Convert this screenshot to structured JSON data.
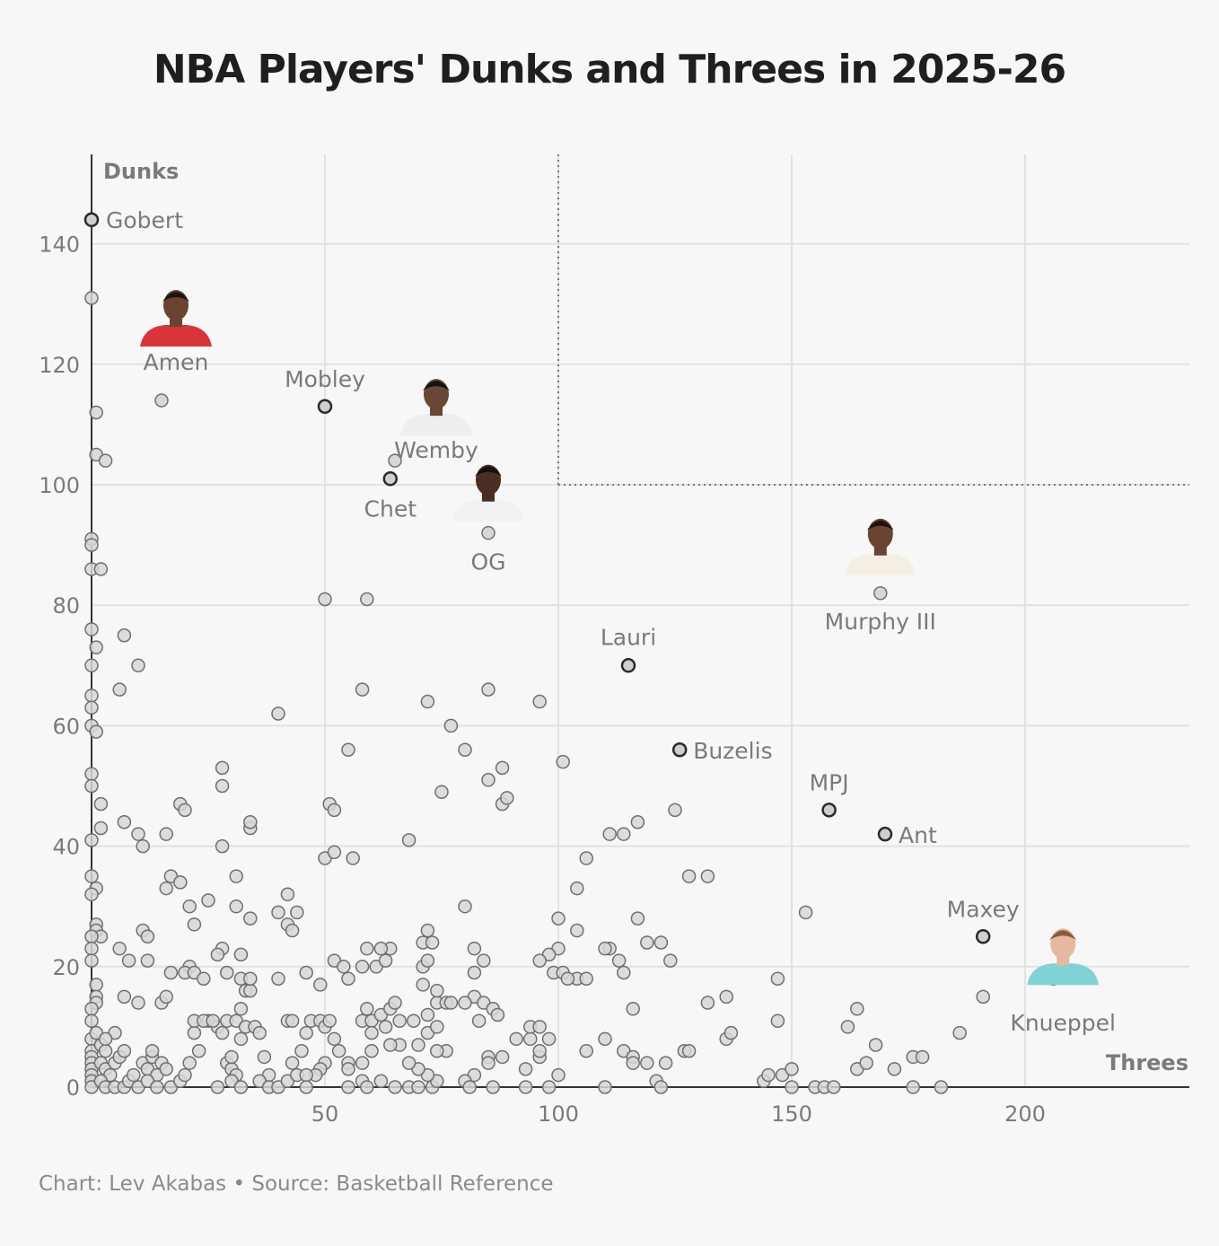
{
  "chart_data": {
    "type": "scatter",
    "title": "NBA Players' Dunks and Threes in 2025-26",
    "xlabel": "Threes",
    "ylabel": "Dunks",
    "xlim": [
      0,
      235
    ],
    "ylim": [
      0,
      155
    ],
    "x_ticks": [
      50,
      100,
      150,
      200
    ],
    "y_ticks": [
      0,
      20,
      40,
      60,
      80,
      100,
      120,
      140
    ],
    "grid": true,
    "reference_lines": [
      {
        "type": "vertical",
        "x": 100,
        "y_from": 100,
        "y_to": 155
      },
      {
        "type": "horizontal",
        "y": 100,
        "x_from": 100,
        "x_to": 235
      }
    ],
    "labeled_points": [
      {
        "name": "Gobert",
        "x": 0,
        "y": 144
      },
      {
        "name": "Amen",
        "x": 15,
        "y": 114,
        "headshot": true
      },
      {
        "name": "Mobley",
        "x": 50,
        "y": 113
      },
      {
        "name": "Wemby",
        "x": 65,
        "y": 104,
        "headshot": true
      },
      {
        "name": "Chet",
        "x": 64,
        "y": 101
      },
      {
        "name": "OG",
        "x": 85,
        "y": 92,
        "headshot": true
      },
      {
        "name": "Murphy III",
        "x": 169,
        "y": 82,
        "headshot": true
      },
      {
        "name": "Lauri",
        "x": 115,
        "y": 70
      },
      {
        "name": "Buzelis",
        "x": 126,
        "y": 56
      },
      {
        "name": "MPJ",
        "x": 158,
        "y": 46
      },
      {
        "name": "Ant",
        "x": 170,
        "y": 42
      },
      {
        "name": "Maxey",
        "x": 191,
        "y": 25
      },
      {
        "name": "Knueppel",
        "x": 206,
        "y": 18,
        "headshot": true
      }
    ],
    "points": [
      [
        0,
        131
      ],
      [
        1,
        112
      ],
      [
        1,
        105
      ],
      [
        3,
        104
      ],
      [
        0,
        91
      ],
      [
        0,
        90
      ],
      [
        0,
        86
      ],
      [
        2,
        86
      ],
      [
        0,
        76
      ],
      [
        1,
        73
      ],
      [
        0,
        70
      ],
      [
        0,
        65
      ],
      [
        0,
        63
      ],
      [
        0,
        60
      ],
      [
        1,
        59
      ],
      [
        0,
        52
      ],
      [
        0,
        50
      ],
      [
        2,
        47
      ],
      [
        2,
        43
      ],
      [
        0,
        41
      ],
      [
        0,
        35
      ],
      [
        1,
        33
      ],
      [
        0,
        32
      ],
      [
        1,
        27
      ],
      [
        1,
        26
      ],
      [
        2,
        25
      ],
      [
        0,
        25
      ],
      [
        0,
        23
      ],
      [
        0,
        21
      ],
      [
        1,
        17
      ],
      [
        1,
        15
      ],
      [
        1,
        14
      ],
      [
        0,
        13
      ],
      [
        0,
        11
      ],
      [
        0,
        8
      ],
      [
        0,
        6
      ],
      [
        0,
        5
      ],
      [
        0,
        4
      ],
      [
        0,
        3
      ],
      [
        0,
        2
      ],
      [
        0,
        1
      ],
      [
        0,
        0
      ],
      [
        1,
        9
      ],
      [
        2,
        7
      ],
      [
        3,
        6
      ],
      [
        2,
        4
      ],
      [
        3,
        3
      ],
      [
        4,
        2
      ],
      [
        2,
        1
      ],
      [
        3,
        0
      ],
      [
        5,
        0
      ],
      [
        7,
        0
      ],
      [
        8,
        1
      ],
      [
        9,
        2
      ],
      [
        5,
        4
      ],
      [
        6,
        5
      ],
      [
        7,
        6
      ],
      [
        5,
        9
      ],
      [
        3,
        8
      ],
      [
        6,
        23
      ],
      [
        7,
        15
      ],
      [
        8,
        21
      ],
      [
        10,
        14
      ],
      [
        11,
        4
      ],
      [
        12,
        3
      ],
      [
        13,
        5
      ],
      [
        14,
        2
      ],
      [
        10,
        0
      ],
      [
        12,
        1
      ],
      [
        14,
        0
      ],
      [
        11,
        26
      ],
      [
        12,
        25
      ],
      [
        10,
        42
      ],
      [
        11,
        40
      ],
      [
        7,
        44
      ],
      [
        7,
        75
      ],
      [
        10,
        70
      ],
      [
        6,
        66
      ],
      [
        12,
        21
      ],
      [
        13,
        6
      ],
      [
        15,
        4
      ],
      [
        16,
        3
      ],
      [
        17,
        0
      ],
      [
        19,
        1
      ],
      [
        20,
        2
      ],
      [
        21,
        4
      ],
      [
        23,
        6
      ],
      [
        22,
        9
      ],
      [
        15,
        14
      ],
      [
        16,
        15
      ],
      [
        17,
        19
      ],
      [
        16,
        33
      ],
      [
        17,
        35
      ],
      [
        19,
        34
      ],
      [
        16,
        42
      ],
      [
        19,
        47
      ],
      [
        20,
        46
      ],
      [
        21,
        30
      ],
      [
        22,
        27
      ],
      [
        21,
        20
      ],
      [
        20,
        19
      ],
      [
        22,
        19
      ],
      [
        24,
        18
      ],
      [
        25,
        11
      ],
      [
        27,
        10
      ],
      [
        28,
        9
      ],
      [
        22,
        11
      ],
      [
        24,
        11
      ],
      [
        26,
        11
      ],
      [
        29,
        11
      ],
      [
        31,
        11
      ],
      [
        25,
        31
      ],
      [
        28,
        23
      ],
      [
        27,
        22
      ],
      [
        29,
        19
      ],
      [
        29,
        4
      ],
      [
        30,
        3
      ],
      [
        31,
        2
      ],
      [
        30,
        1
      ],
      [
        32,
        0
      ],
      [
        27,
        0
      ],
      [
        30,
        5
      ],
      [
        32,
        8
      ],
      [
        33,
        10
      ],
      [
        32,
        13
      ],
      [
        33,
        16
      ],
      [
        34,
        16
      ],
      [
        32,
        18
      ],
      [
        34,
        18
      ],
      [
        32,
        22
      ],
      [
        31,
        35
      ],
      [
        31,
        30
      ],
      [
        34,
        28
      ],
      [
        34,
        43
      ],
      [
        34,
        44
      ],
      [
        28,
        40
      ],
      [
        28,
        50
      ],
      [
        28,
        53
      ],
      [
        35,
        10
      ],
      [
        36,
        9
      ],
      [
        37,
        5
      ],
      [
        38,
        2
      ],
      [
        36,
        1
      ],
      [
        38,
        0
      ],
      [
        40,
        0
      ],
      [
        42,
        1
      ],
      [
        44,
        2
      ],
      [
        43,
        4
      ],
      [
        45,
        6
      ],
      [
        46,
        9
      ],
      [
        42,
        11
      ],
      [
        43,
        11
      ],
      [
        47,
        11
      ],
      [
        49,
        11
      ],
      [
        50,
        10
      ],
      [
        51,
        11
      ],
      [
        49,
        17
      ],
      [
        46,
        19
      ],
      [
        40,
        18
      ],
      [
        42,
        27
      ],
      [
        43,
        26
      ],
      [
        44,
        29
      ],
      [
        40,
        29
      ],
      [
        42,
        32
      ],
      [
        40,
        62
      ],
      [
        50,
        81
      ],
      [
        59,
        81
      ],
      [
        58,
        66
      ],
      [
        55,
        56
      ],
      [
        51,
        47
      ],
      [
        52,
        46
      ],
      [
        50,
        38
      ],
      [
        52,
        39
      ],
      [
        56,
        38
      ],
      [
        52,
        21
      ],
      [
        54,
        20
      ],
      [
        55,
        18
      ],
      [
        58,
        20
      ],
      [
        59,
        23
      ],
      [
        61,
        20
      ],
      [
        63,
        21
      ],
      [
        64,
        23
      ],
      [
        62,
        23
      ],
      [
        59,
        13
      ],
      [
        58,
        11
      ],
      [
        60,
        11
      ],
      [
        62,
        12
      ],
      [
        64,
        13
      ],
      [
        65,
        14
      ],
      [
        66,
        11
      ],
      [
        63,
        10
      ],
      [
        60,
        9
      ],
      [
        60,
        6
      ],
      [
        58,
        4
      ],
      [
        55,
        4
      ],
      [
        55,
        3
      ],
      [
        53,
        6
      ],
      [
        52,
        8
      ],
      [
        50,
        4
      ],
      [
        49,
        3
      ],
      [
        48,
        2
      ],
      [
        46,
        2
      ],
      [
        46,
        0
      ],
      [
        55,
        0
      ],
      [
        58,
        1
      ],
      [
        59,
        0
      ],
      [
        62,
        1
      ],
      [
        65,
        0
      ],
      [
        68,
        0
      ],
      [
        70,
        0
      ],
      [
        73,
        0
      ],
      [
        74,
        1
      ],
      [
        72,
        2
      ],
      [
        70,
        3
      ],
      [
        68,
        4
      ],
      [
        66,
        7
      ],
      [
        64,
        7
      ],
      [
        70,
        7
      ],
      [
        72,
        9
      ],
      [
        74,
        10
      ],
      [
        69,
        11
      ],
      [
        72,
        12
      ],
      [
        74,
        14
      ],
      [
        76,
        14
      ],
      [
        74,
        16
      ],
      [
        71,
        17
      ],
      [
        71,
        20
      ],
      [
        72,
        21
      ],
      [
        71,
        24
      ],
      [
        73,
        24
      ],
      [
        72,
        26
      ],
      [
        68,
        41
      ],
      [
        72,
        64
      ],
      [
        75,
        49
      ],
      [
        77,
        60
      ],
      [
        80,
        56
      ],
      [
        80,
        30
      ],
      [
        82,
        23
      ],
      [
        82,
        19
      ],
      [
        84,
        21
      ],
      [
        82,
        15
      ],
      [
        84,
        14
      ],
      [
        86,
        13
      ],
      [
        87,
        12
      ],
      [
        83,
        11
      ],
      [
        80,
        14
      ],
      [
        77,
        14
      ],
      [
        76,
        6
      ],
      [
        74,
        6
      ],
      [
        82,
        2
      ],
      [
        80,
        1
      ],
      [
        81,
        0
      ],
      [
        86,
        0
      ],
      [
        85,
        5
      ],
      [
        85,
        4
      ],
      [
        88,
        5
      ],
      [
        91,
        8
      ],
      [
        94,
        8
      ],
      [
        93,
        3
      ],
      [
        96,
        5
      ],
      [
        96,
        6
      ],
      [
        98,
        8
      ],
      [
        94,
        10
      ],
      [
        96,
        10
      ],
      [
        93,
        0
      ],
      [
        98,
        0
      ],
      [
        100,
        2
      ],
      [
        99,
        19
      ],
      [
        101,
        19
      ],
      [
        104,
        18
      ],
      [
        106,
        18
      ],
      [
        102,
        18
      ],
      [
        100,
        23
      ],
      [
        98,
        22
      ],
      [
        96,
        21
      ],
      [
        100,
        28
      ],
      [
        104,
        26
      ],
      [
        104,
        33
      ],
      [
        106,
        38
      ],
      [
        101,
        54
      ],
      [
        96,
        64
      ],
      [
        85,
        66
      ],
      [
        85,
        51
      ],
      [
        88,
        47
      ],
      [
        89,
        48
      ],
      [
        88,
        53
      ],
      [
        106,
        6
      ],
      [
        110,
        8
      ],
      [
        114,
        6
      ],
      [
        116,
        5
      ],
      [
        116,
        4
      ],
      [
        119,
        4
      ],
      [
        121,
        1
      ],
      [
        123,
        4
      ],
      [
        122,
        0
      ],
      [
        110,
        0
      ],
      [
        116,
        13
      ],
      [
        114,
        19
      ],
      [
        113,
        21
      ],
      [
        111,
        23
      ],
      [
        110,
        23
      ],
      [
        117,
        28
      ],
      [
        119,
        24
      ],
      [
        122,
        24
      ],
      [
        111,
        42
      ],
      [
        114,
        42
      ],
      [
        117,
        44
      ],
      [
        124,
        21
      ],
      [
        125,
        46
      ],
      [
        127,
        6
      ],
      [
        128,
        6
      ],
      [
        132,
        35
      ],
      [
        128,
        35
      ],
      [
        132,
        14
      ],
      [
        136,
        8
      ],
      [
        137,
        9
      ],
      [
        136,
        15
      ],
      [
        144,
        1
      ],
      [
        145,
        2
      ],
      [
        148,
        2
      ],
      [
        150,
        3
      ],
      [
        150,
        0
      ],
      [
        155,
        0
      ],
      [
        157,
        0
      ],
      [
        159,
        0
      ],
      [
        147,
        11
      ],
      [
        147,
        18
      ],
      [
        153,
        29
      ],
      [
        162,
        10
      ],
      [
        164,
        13
      ],
      [
        164,
        3
      ],
      [
        166,
        4
      ],
      [
        168,
        7
      ],
      [
        172,
        3
      ],
      [
        176,
        5
      ],
      [
        178,
        5
      ],
      [
        176,
        0
      ],
      [
        182,
        0
      ],
      [
        186,
        9
      ],
      [
        191,
        15
      ]
    ],
    "series": [
      {
        "values": "points"
      }
    ]
  },
  "credits": "Chart: Lev Akabas • Source: Basketball Reference",
  "colors": {
    "background": "#f7f7f7",
    "point_fill": "#d7d7d7",
    "point_stroke": "#6f6f6f",
    "highlight_stroke": "#2a2a2a",
    "grid": "#e2e2e2",
    "axis": "#333333",
    "tick_text": "#7a7a7a",
    "label_text": "#7a7a7a",
    "title": "#1f1f1f"
  }
}
